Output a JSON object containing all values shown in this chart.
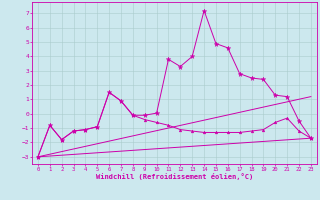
{
  "xlabel": "Windchill (Refroidissement éolien,°C)",
  "background_color": "#cce8ee",
  "grid_color": "#aacccc",
  "line_color": "#cc00aa",
  "xlim": [
    -0.5,
    23.5
  ],
  "ylim": [
    -3.5,
    7.8
  ],
  "yticks": [
    -3,
    -2,
    -1,
    0,
    1,
    2,
    3,
    4,
    5,
    6,
    7
  ],
  "xticks": [
    0,
    1,
    2,
    3,
    4,
    5,
    6,
    7,
    8,
    9,
    10,
    11,
    12,
    13,
    14,
    15,
    16,
    17,
    18,
    19,
    20,
    21,
    22,
    23
  ],
  "series_main": {
    "x": [
      0,
      1,
      2,
      3,
      4,
      5,
      6,
      7,
      8,
      9,
      10,
      11,
      12,
      13,
      14,
      15,
      16,
      17,
      18,
      19,
      20,
      21,
      22,
      23
    ],
    "y": [
      -3.0,
      -0.8,
      -1.8,
      -1.2,
      -1.1,
      -0.9,
      1.5,
      0.9,
      -0.1,
      -0.1,
      0.05,
      3.8,
      3.3,
      4.0,
      7.2,
      4.9,
      4.6,
      2.8,
      2.5,
      2.4,
      1.3,
      1.2,
      -0.5,
      -1.7
    ]
  },
  "series_lower": {
    "x": [
      0,
      1,
      2,
      3,
      4,
      5,
      6,
      7,
      8,
      9,
      10,
      11,
      12,
      13,
      14,
      15,
      16,
      17,
      18,
      19,
      20,
      21,
      22,
      23
    ],
    "y": [
      -3.0,
      -0.8,
      -1.8,
      -1.2,
      -1.1,
      -0.9,
      1.5,
      0.9,
      -0.1,
      -0.4,
      -0.6,
      -0.8,
      -1.1,
      -1.2,
      -1.3,
      -1.3,
      -1.3,
      -1.3,
      -1.2,
      -1.1,
      -0.6,
      -0.3,
      -1.2,
      -1.7
    ]
  },
  "trend1": {
    "x": [
      0,
      23
    ],
    "y": [
      -3.0,
      1.2
    ]
  },
  "trend2": {
    "x": [
      0,
      23
    ],
    "y": [
      -3.0,
      -1.7
    ]
  }
}
